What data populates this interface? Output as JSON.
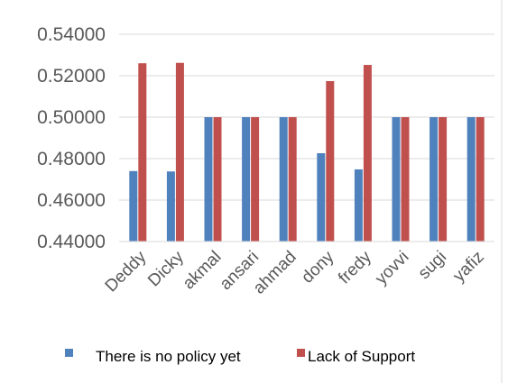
{
  "chart_data": {
    "type": "bar",
    "categories": [
      "Deddy",
      "Dicky",
      "akmal",
      "ansari",
      "ahmad",
      "dony",
      "fredy",
      "yovvi",
      "sugi",
      "yafiz"
    ],
    "series": [
      {
        "name": "There is no policy yet",
        "color": "#4f81bd",
        "values": [
          0.474,
          0.4738,
          0.5,
          0.5,
          0.5,
          0.4826,
          0.4748,
          0.5,
          0.5,
          0.5
        ]
      },
      {
        "name": "Lack of Support",
        "color": "#c0504d",
        "values": [
          0.526,
          0.5262,
          0.5,
          0.5,
          0.5,
          0.5174,
          0.5252,
          0.5,
          0.5,
          0.5
        ]
      }
    ],
    "y_ticks": [
      "0.44000",
      "0.46000",
      "0.48000",
      "0.50000",
      "0.52000",
      "0.54000"
    ],
    "ylim": [
      0.44,
      0.54
    ],
    "grid": "horizontal",
    "legend_position": "bottom"
  }
}
